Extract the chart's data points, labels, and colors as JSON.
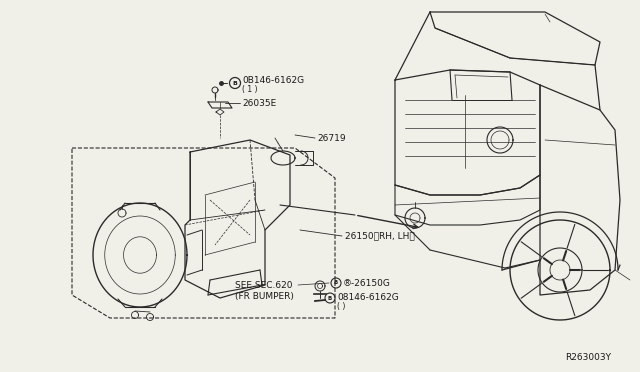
{
  "bg_color": "#f0efe8",
  "diagram_ref": "R263003Y",
  "lc": "#2a2a2a",
  "tc": "#1a1a1a",
  "fs": 6.5,
  "fs_small": 5.5,
  "labels": {
    "bolt_top_circ": "B",
    "bolt_top_num": "0B146-6162G",
    "bolt_top_sub": "( 1 )",
    "bracket_num": "26035E",
    "connector_num": "26719",
    "lamp_num": "26150（RH, LH）",
    "see_sec": "SEE SEC.620",
    "fr_bumper": "(FR BUMPER)",
    "bolt2_circ": "B",
    "bolt2_num": "-26150G",
    "bolt3_circ": "B",
    "bolt3_num": "08146-6162G",
    "bolt3_sub": "( )"
  }
}
